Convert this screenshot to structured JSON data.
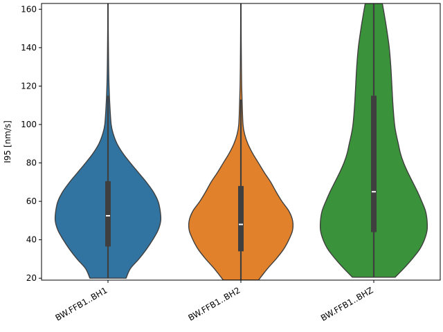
{
  "chart_data": {
    "type": "violin",
    "title": "",
    "xlabel": "",
    "ylabel": "I95 [nm/s]",
    "ylim": [
      19,
      163
    ],
    "yticks": [
      20,
      40,
      60,
      80,
      100,
      120,
      140,
      160
    ],
    "grid": false,
    "categories": [
      "BW.FFB1..BH1",
      "BW.FFB1..BH2",
      "BW.FFB1..BHZ"
    ],
    "colors": [
      "#3274a1",
      "#e1812c",
      "#3a923a"
    ],
    "series": [
      {
        "name": "BW.FFB1..BH1",
        "median": 52.5,
        "q1": 36.5,
        "q3": 70.5,
        "whisker_low": 20,
        "whisker_high": 115,
        "profile": [
          [
            20,
            0.34
          ],
          [
            25,
            0.42
          ],
          [
            30,
            0.58
          ],
          [
            35,
            0.72
          ],
          [
            40,
            0.84
          ],
          [
            45,
            0.94
          ],
          [
            50,
            0.99
          ],
          [
            55,
            0.98
          ],
          [
            60,
            0.94
          ],
          [
            65,
            0.85
          ],
          [
            70,
            0.72
          ],
          [
            75,
            0.57
          ],
          [
            80,
            0.42
          ],
          [
            85,
            0.28
          ],
          [
            90,
            0.17
          ],
          [
            95,
            0.1
          ],
          [
            100,
            0.06
          ],
          [
            110,
            0.035
          ],
          [
            120,
            0.02
          ],
          [
            130,
            0.012
          ],
          [
            140,
            0.008
          ],
          [
            150,
            0.005
          ],
          [
            163,
            0.004
          ]
        ]
      },
      {
        "name": "BW.FFB1..BH2",
        "median": 48,
        "q1": 34,
        "q3": 68,
        "whisker_low": 19,
        "whisker_high": 113,
        "profile": [
          [
            19,
            0.33
          ],
          [
            25,
            0.5
          ],
          [
            30,
            0.66
          ],
          [
            35,
            0.8
          ],
          [
            40,
            0.9
          ],
          [
            45,
            0.97
          ],
          [
            50,
            0.97
          ],
          [
            55,
            0.9
          ],
          [
            60,
            0.77
          ],
          [
            65,
            0.66
          ],
          [
            70,
            0.56
          ],
          [
            75,
            0.44
          ],
          [
            80,
            0.33
          ],
          [
            85,
            0.22
          ],
          [
            90,
            0.13
          ],
          [
            95,
            0.07
          ],
          [
            100,
            0.04
          ],
          [
            110,
            0.025
          ],
          [
            120,
            0.015
          ],
          [
            130,
            0.01
          ],
          [
            140,
            0.007
          ],
          [
            150,
            0.005
          ],
          [
            163,
            0.004
          ]
        ]
      },
      {
        "name": "BW.FFB1..BHZ",
        "median": 65,
        "q1": 44,
        "q3": 115,
        "whisker_low": 20.5,
        "whisker_high": 163,
        "profile": [
          [
            20.5,
            0.4
          ],
          [
            25,
            0.56
          ],
          [
            30,
            0.72
          ],
          [
            35,
            0.86
          ],
          [
            40,
            0.95
          ],
          [
            45,
            1.0
          ],
          [
            50,
            1.0
          ],
          [
            55,
            0.97
          ],
          [
            60,
            0.9
          ],
          [
            65,
            0.82
          ],
          [
            70,
            0.73
          ],
          [
            75,
            0.64
          ],
          [
            80,
            0.56
          ],
          [
            85,
            0.5
          ],
          [
            90,
            0.46
          ],
          [
            95,
            0.42
          ],
          [
            100,
            0.39
          ],
          [
            110,
            0.36
          ],
          [
            120,
            0.34
          ],
          [
            130,
            0.32
          ],
          [
            140,
            0.29
          ],
          [
            150,
            0.24
          ],
          [
            160,
            0.18
          ],
          [
            163,
            0.16
          ]
        ]
      }
    ]
  }
}
